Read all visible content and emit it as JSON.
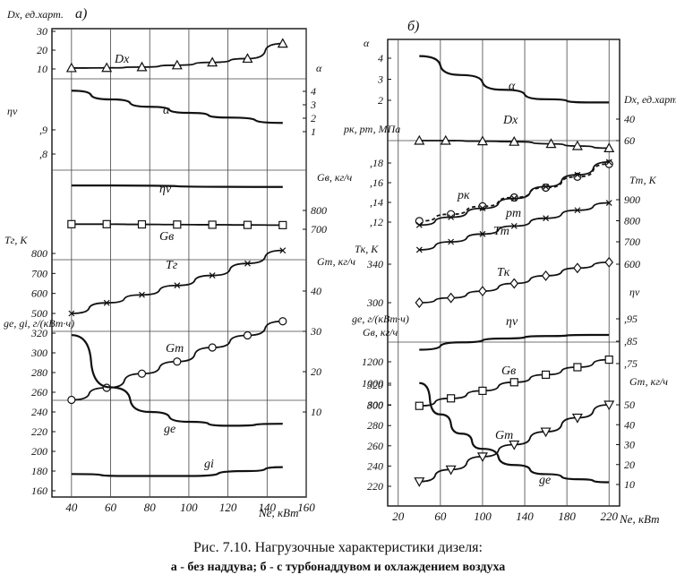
{
  "caption": {
    "line1": "Рис. 7.10. Нагрузочные характеристики дизеля:",
    "line2": "а - без наддува; б - с турбонаддувом и охлаждением воздуха"
  },
  "chart_data": [
    {
      "panel": "а)",
      "type": "line",
      "xlabel": "Ne, кВт",
      "xlim": [
        30,
        160
      ],
      "x_ticks": [
        40,
        60,
        80,
        100,
        120,
        140,
        160
      ],
      "grid": true,
      "axes": {
        "Dx": {
          "label": "Dx, ед.харт.",
          "side": "left",
          "ticks": [
            10,
            20,
            30
          ]
        },
        "alpha": {
          "label": "α",
          "side": "right",
          "ticks": [
            1,
            2,
            3,
            4
          ]
        },
        "eta": {
          "label": "ηv",
          "side": "left",
          "ticks": [
            0.8,
            0.9
          ]
        },
        "Gv": {
          "label": "Gв, кг/ч",
          "side": "right",
          "ticks": [
            700,
            800
          ]
        },
        "Tg": {
          "label": "Tг, K",
          "side": "left",
          "ticks": [
            500,
            600,
            700,
            800
          ]
        },
        "GT": {
          "label": "Gт, кг/ч",
          "side": "right",
          "ticks": [
            10,
            20,
            30,
            40
          ]
        },
        "ge": {
          "label": "ge, gi, г/(кВт·ч)",
          "side": "left",
          "ticks": [
            160,
            180,
            200,
            220,
            240,
            260,
            280,
            300,
            320
          ]
        }
      },
      "series": [
        {
          "name": "Dx",
          "axis": "Dx",
          "marker": "triangle",
          "x": [
            40,
            58,
            76,
            94,
            112,
            130,
            148
          ],
          "values": [
            10.5,
            10.6,
            11.0,
            12.0,
            13.5,
            15.5,
            23.5
          ]
        },
        {
          "name": "α",
          "axis": "alpha",
          "marker": "none",
          "x": [
            40,
            60,
            80,
            100,
            120,
            148
          ],
          "values": [
            4.05,
            3.4,
            2.85,
            2.4,
            2.05,
            1.65
          ]
        },
        {
          "name": "ηv",
          "axis": "eta",
          "marker": "none",
          "x": [
            40,
            148
          ],
          "values": [
            0.67,
            0.664
          ]
        },
        {
          "name": "Gв",
          "axis": "Gv",
          "marker": "square",
          "x": [
            40,
            58,
            76,
            94,
            112,
            130,
            148
          ],
          "values": [
            727,
            727,
            726,
            725,
            724,
            723,
            722
          ]
        },
        {
          "name": "Tг",
          "axis": "Tg",
          "marker": "x",
          "x": [
            40,
            58,
            76,
            94,
            112,
            130,
            148
          ],
          "values": [
            500,
            553,
            593,
            640,
            690,
            750,
            815
          ]
        },
        {
          "name": "Gт",
          "axis": "GT",
          "marker": "circle",
          "x": [
            40,
            58,
            76,
            94,
            112,
            130,
            148
          ],
          "values": [
            13.0,
            16.0,
            19.5,
            22.5,
            26.0,
            29.0,
            32.5
          ]
        },
        {
          "name": "ge",
          "axis": "ge",
          "marker": "none",
          "x": [
            40,
            60,
            80,
            100,
            120,
            148
          ],
          "values": [
            318,
            265,
            240,
            230,
            226,
            228
          ]
        },
        {
          "name": "gi",
          "axis": "ge",
          "marker": "none",
          "x": [
            40,
            70,
            100,
            130,
            148
          ],
          "values": [
            177,
            175,
            175,
            180,
            184
          ]
        }
      ]
    },
    {
      "panel": "б)",
      "type": "line",
      "xlabel": "Ne, кВт",
      "xlim": [
        10,
        230
      ],
      "x_ticks": [
        20,
        60,
        100,
        140,
        180,
        220
      ],
      "grid": true,
      "axes": {
        "alpha": {
          "label": "α",
          "side": "left",
          "ticks": [
            2,
            3,
            4
          ]
        },
        "Dx": {
          "label": "Dx, ед.харт.",
          "side": "right",
          "ticks": [
            40,
            60
          ]
        },
        "pk": {
          "label": "pк, pт, МПа",
          "side": "left",
          "ticks": [
            0.12,
            0.14,
            0.16,
            0.18
          ]
        },
        "Tt": {
          "label": "Tт, K",
          "side": "right",
          "ticks": [
            700,
            800,
            900
          ]
        },
        "Tk": {
          "label": "Tк, K",
          "side": "left",
          "ticks": [
            300,
            340
          ]
        },
        "Tk2": {
          "label": "",
          "side": "right",
          "ticks": [
            600
          ]
        },
        "eta": {
          "label": "ηv",
          "side": "right",
          "ticks": [
            0.75,
            0.85,
            0.95
          ]
        },
        "Gv": {
          "label": "Gв, кг/ч",
          "side": "left",
          "ticks": [
            800,
            1000,
            1200
          ]
        },
        "GT": {
          "label": "Gт, кг/ч",
          "side": "right",
          "ticks": [
            10,
            20,
            30,
            40,
            50
          ]
        },
        "ge": {
          "label": "ge, г/(кВт·ч)",
          "side": "left",
          "ticks": [
            220,
            240,
            260,
            280,
            300,
            320
          ]
        }
      },
      "series": [
        {
          "name": "α",
          "axis": "alpha",
          "marker": "none",
          "x": [
            40,
            80,
            120,
            160,
            200,
            220
          ],
          "values": [
            4.1,
            3.2,
            2.5,
            2.05,
            1.9,
            1.9
          ]
        },
        {
          "name": "Dx",
          "axis": "Dx",
          "marker": "triangle",
          "x": [
            40,
            65,
            100,
            130,
            165,
            190,
            220
          ],
          "values": [
            60,
            60,
            60.5,
            61,
            63,
            65,
            67
          ]
        },
        {
          "name": "pк",
          "axis": "pk",
          "marker": "circle",
          "x": [
            40,
            70,
            100,
            130,
            160,
            190,
            220
          ],
          "values": [
            0.121,
            0.128,
            0.136,
            0.145,
            0.155,
            0.166,
            0.179
          ]
        },
        {
          "name": "pт",
          "axis": "pk",
          "marker": "x",
          "x": [
            40,
            70,
            100,
            130,
            160,
            190,
            220
          ],
          "values": [
            0.117,
            0.125,
            0.134,
            0.144,
            0.156,
            0.168,
            0.181
          ]
        },
        {
          "name": "Tт",
          "axis": "Tt",
          "marker": "x",
          "x": [
            40,
            70,
            100,
            130,
            160,
            190,
            220
          ],
          "values": [
            662,
            700,
            737,
            775,
            812,
            850,
            885
          ]
        },
        {
          "name": "Tк",
          "axis": "Tk",
          "marker": "diamond",
          "x": [
            40,
            70,
            100,
            130,
            160,
            190,
            220
          ],
          "values": [
            300,
            305,
            312,
            320,
            328,
            336,
            342
          ]
        },
        {
          "name": "ηv",
          "axis": "eta",
          "marker": "none",
          "x": [
            40,
            80,
            120,
            160,
            200,
            220
          ],
          "values": [
            0.812,
            0.845,
            0.862,
            0.873,
            0.878,
            0.878
          ]
        },
        {
          "name": "Gв",
          "axis": "Gv",
          "marker": "square",
          "x": [
            40,
            70,
            100,
            130,
            160,
            190,
            220
          ],
          "values": [
            790,
            860,
            930,
            1010,
            1080,
            1150,
            1220
          ]
        },
        {
          "name": "Gт",
          "axis": "GT",
          "marker": "triangle-down",
          "x": [
            40,
            70,
            100,
            130,
            160,
            190,
            220
          ],
          "values": [
            11.5,
            17.5,
            24.0,
            30.0,
            36.5,
            43.5,
            50.0
          ]
        },
        {
          "name": "ge",
          "axis": "ge",
          "marker": "none",
          "x": [
            40,
            60,
            80,
            100,
            130,
            160,
            190,
            220
          ],
          "values": [
            322,
            291,
            272,
            257,
            241,
            232,
            227,
            224
          ]
        }
      ]
    }
  ]
}
